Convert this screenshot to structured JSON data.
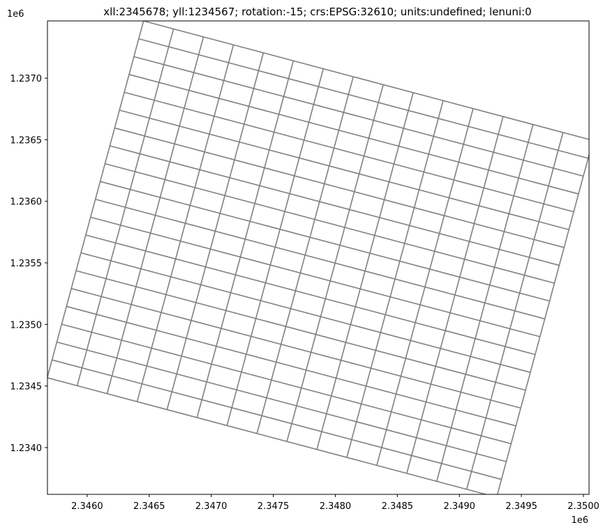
{
  "chart_data": {
    "type": "grid",
    "title": "xll:2345678; yll:1234567; rotation:-15; crs:EPSG:32610; units:undefined; lenuni:0",
    "origin": {
      "xll": 2345678,
      "yll": 1234567
    },
    "rotation_deg": -15,
    "ncol": 15,
    "nrow": 20,
    "col_width": 250,
    "row_height": 150,
    "xlim": [
      2345680,
      2350045
    ],
    "ylim": [
      1233620,
      1237465
    ],
    "xticks": [
      2346000,
      2346500,
      2347000,
      2347500,
      2348000,
      2348500,
      2349000,
      2349500,
      2350000
    ],
    "xtick_labels": [
      "2.3460",
      "2.3465",
      "2.3470",
      "2.3475",
      "2.3480",
      "2.3485",
      "2.3490",
      "2.3495",
      "2.3500"
    ],
    "yticks": [
      1234000,
      1234500,
      1235000,
      1235500,
      1236000,
      1236500,
      1237000
    ],
    "ytick_labels": [
      "1.2340",
      "1.2345",
      "1.2350",
      "1.2355",
      "1.2360",
      "1.2365",
      "1.2370"
    ],
    "x_offset_label": "1e6",
    "y_offset_label": "1e6",
    "line_color": "#808080",
    "grid": false
  }
}
